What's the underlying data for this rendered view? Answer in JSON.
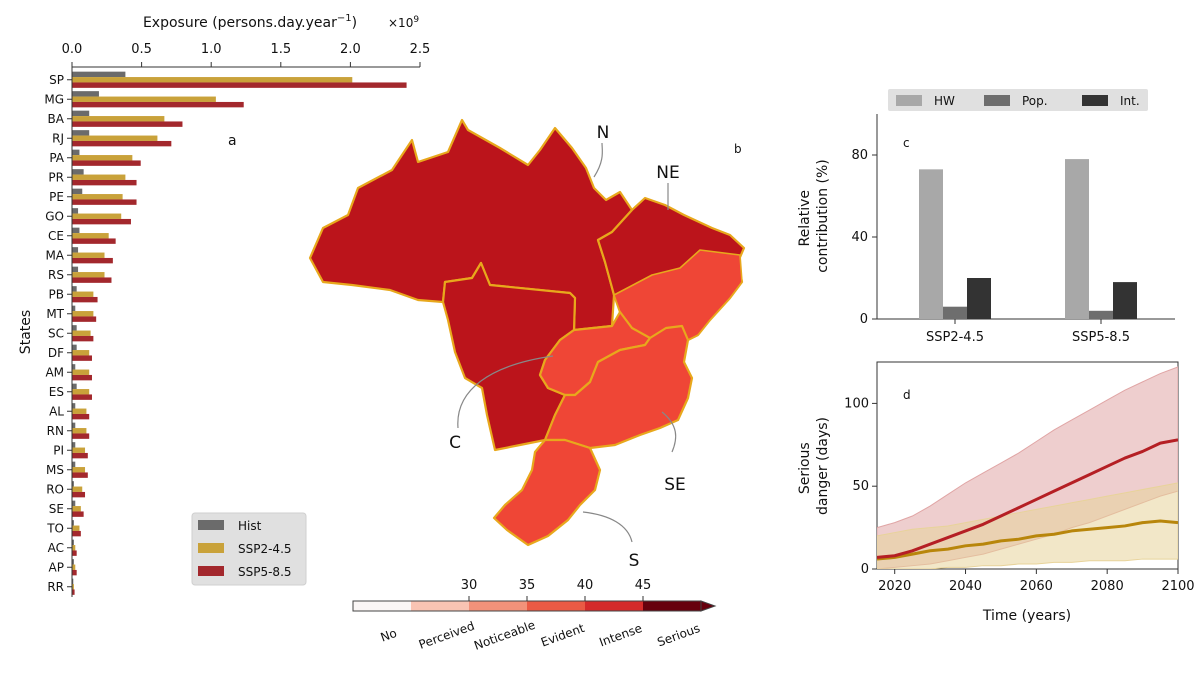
{
  "colors": {
    "hist": "#6b6b6b",
    "ssp245": "#c9a23a",
    "ssp585": "#a3282d",
    "hw": "#a8a8a8",
    "pop": "#6e6e6e",
    "int": "#333333",
    "line245": "#b8860b",
    "line585": "#b51f24",
    "border": "#e8a81c",
    "cat_no": "#faf6f5",
    "cat_perceived": "#f9c4b3",
    "cat_noticeable": "#f2927a",
    "cat_evident": "#ea5a44",
    "cat_intense": "#d42a2a",
    "cat_serious": "#67000d"
  },
  "chart_data": [
    {
      "panel": "a",
      "type": "bar",
      "orientation": "horizontal",
      "xlabel": "Exposure (persons.day.year",
      "xlabel_sup": "−1",
      "xlabel_close": ")",
      "multiplier": "×10",
      "multiplier_exp": "9",
      "ylabel": "States",
      "xlim": [
        0,
        2.5
      ],
      "xticks": [
        0.0,
        0.5,
        1.0,
        1.5,
        2.0,
        2.5
      ],
      "xtick_labels": [
        "0.0",
        "0.5",
        "1.0",
        "1.5",
        "2.0",
        "2.5"
      ],
      "legend_position": "lower-right",
      "categories": [
        "SP",
        "MG",
        "BA",
        "RJ",
        "PA",
        "PR",
        "PE",
        "GO",
        "CE",
        "MA",
        "RS",
        "PB",
        "MT",
        "SC",
        "DF",
        "AM",
        "ES",
        "AL",
        "RN",
        "PI",
        "MS",
        "RO",
        "SE",
        "TO",
        "AC",
        "AP",
        "RR"
      ],
      "series": [
        {
          "name": "Hist",
          "values": [
            0.38,
            0.19,
            0.12,
            0.12,
            0.05,
            0.08,
            0.07,
            0.04,
            0.05,
            0.04,
            0.04,
            0.03,
            0.02,
            0.03,
            0.03,
            0.02,
            0.03,
            0.02,
            0.02,
            0.02,
            0.02,
            0.01,
            0.02,
            0.01,
            0.01,
            0.01,
            0.005
          ]
        },
        {
          "name": "SSP2-4.5",
          "values": [
            2.01,
            1.03,
            0.66,
            0.61,
            0.43,
            0.38,
            0.36,
            0.35,
            0.26,
            0.23,
            0.23,
            0.15,
            0.15,
            0.13,
            0.12,
            0.12,
            0.12,
            0.1,
            0.1,
            0.09,
            0.09,
            0.07,
            0.06,
            0.05,
            0.02,
            0.02,
            0.01
          ]
        },
        {
          "name": "SSP5-8.5",
          "values": [
            2.4,
            1.23,
            0.79,
            0.71,
            0.49,
            0.46,
            0.46,
            0.42,
            0.31,
            0.29,
            0.28,
            0.18,
            0.17,
            0.15,
            0.14,
            0.14,
            0.14,
            0.12,
            0.12,
            0.11,
            0.11,
            0.09,
            0.08,
            0.06,
            0.03,
            0.03,
            0.015
          ]
        }
      ]
    },
    {
      "panel": "c",
      "type": "bar",
      "ylabel_line1": "Relative",
      "ylabel_line2": "contribution (%)",
      "ylim": [
        0,
        100
      ],
      "yticks": [
        0,
        40,
        80
      ],
      "legend_position": "top",
      "categories": [
        "SSP2-4.5",
        "SSP5-8.5"
      ],
      "series": [
        {
          "name": "HW",
          "values": [
            73,
            78
          ]
        },
        {
          "name": "Pop.",
          "values": [
            6,
            4
          ]
        },
        {
          "name": "Int.",
          "values": [
            20,
            18
          ]
        }
      ]
    },
    {
      "panel": "d",
      "type": "line",
      "xlabel": "Time (years)",
      "ylabel_line1": "Serious",
      "ylabel_line2": "danger (days)",
      "xlim": [
        2015,
        2100
      ],
      "ylim": [
        0,
        125
      ],
      "xticks": [
        2020,
        2040,
        2060,
        2080,
        2100
      ],
      "yticks": [
        0,
        50,
        100
      ],
      "series": [
        {
          "name": "SSP2-4.5",
          "x": [
            2015,
            2020,
            2025,
            2030,
            2035,
            2040,
            2045,
            2050,
            2055,
            2060,
            2065,
            2070,
            2075,
            2080,
            2085,
            2090,
            2095,
            2100
          ],
          "values": [
            6,
            7,
            9,
            11,
            12,
            14,
            15,
            17,
            18,
            20,
            21,
            23,
            24,
            25,
            26,
            28,
            29,
            28
          ],
          "lower": [
            0,
            0,
            0,
            0,
            1,
            1,
            2,
            2,
            3,
            3,
            4,
            4,
            5,
            5,
            5,
            6,
            6,
            6
          ],
          "upper": [
            20,
            22,
            24,
            25,
            26,
            28,
            30,
            32,
            34,
            36,
            38,
            40,
            42,
            44,
            46,
            48,
            50,
            52
          ]
        },
        {
          "name": "SSP5-8.5",
          "x": [
            2015,
            2020,
            2025,
            2030,
            2035,
            2040,
            2045,
            2050,
            2055,
            2060,
            2065,
            2070,
            2075,
            2080,
            2085,
            2090,
            2095,
            2100
          ],
          "values": [
            7,
            8,
            11,
            15,
            19,
            23,
            27,
            32,
            37,
            42,
            47,
            52,
            57,
            62,
            67,
            71,
            76,
            78
          ],
          "lower": [
            0,
            1,
            2,
            3,
            5,
            7,
            9,
            12,
            15,
            18,
            21,
            25,
            28,
            32,
            36,
            40,
            44,
            47
          ],
          "upper": [
            25,
            28,
            32,
            38,
            45,
            52,
            58,
            64,
            70,
            77,
            84,
            90,
            96,
            102,
            108,
            113,
            118,
            122
          ]
        }
      ]
    }
  ],
  "map": {
    "panel_label": "b",
    "regions": [
      "N",
      "NE",
      "C",
      "SE",
      "S"
    ]
  },
  "colorbar": {
    "ticks": [
      "30",
      "35",
      "40",
      "45"
    ],
    "categories": [
      "No",
      "Perceived",
      "Noticeable",
      "Evident",
      "Intense",
      "Serious"
    ]
  }
}
